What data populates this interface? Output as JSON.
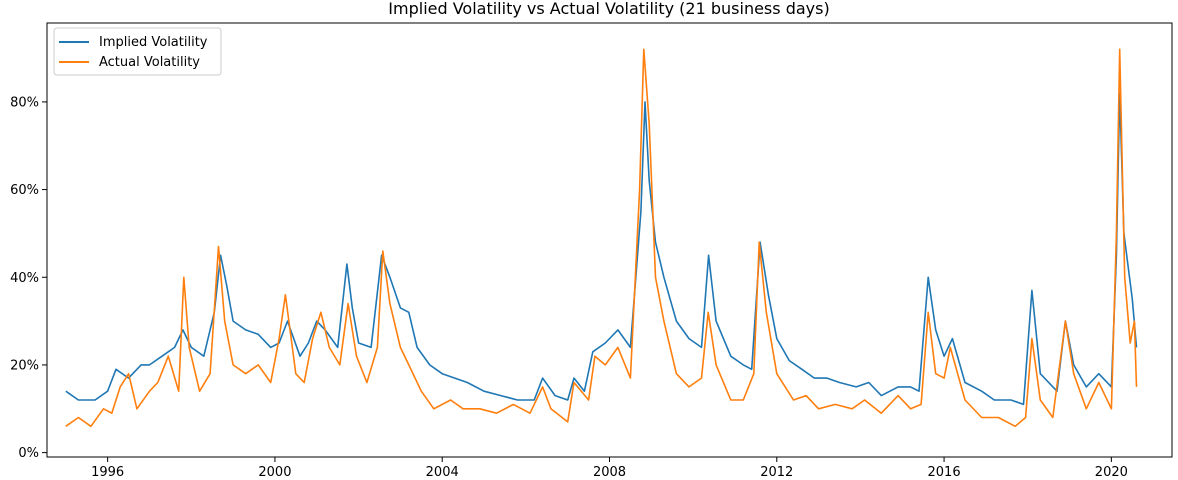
{
  "chart_data": {
    "type": "line",
    "title": "Implied Volatility vs Actual Volatility (21 business days)",
    "xlabel": "",
    "ylabel": "",
    "x_ticks": [
      "1996",
      "2000",
      "2004",
      "2008",
      "2012",
      "2016",
      "2020"
    ],
    "y_ticks": [
      "0%",
      "20%",
      "40%",
      "60%",
      "80%"
    ],
    "xlim": [
      1994.55,
      2021.45
    ],
    "ylim": [
      -1,
      98
    ],
    "grid": false,
    "legend": "top-left",
    "series": [
      {
        "name": "Implied Volatility",
        "color": "#1f77b4",
        "points": [
          [
            1995.0,
            14
          ],
          [
            1995.3,
            12
          ],
          [
            1995.7,
            12
          ],
          [
            1996.0,
            14
          ],
          [
            1996.2,
            19
          ],
          [
            1996.5,
            17
          ],
          [
            1996.8,
            20
          ],
          [
            1997.0,
            20
          ],
          [
            1997.3,
            22
          ],
          [
            1997.6,
            24
          ],
          [
            1997.8,
            28
          ],
          [
            1998.0,
            24
          ],
          [
            1998.3,
            22
          ],
          [
            1998.55,
            32
          ],
          [
            1998.7,
            45
          ],
          [
            1998.85,
            38
          ],
          [
            1999.0,
            30
          ],
          [
            1999.3,
            28
          ],
          [
            1999.6,
            27
          ],
          [
            1999.9,
            24
          ],
          [
            2000.1,
            25
          ],
          [
            2000.3,
            30
          ],
          [
            2000.6,
            22
          ],
          [
            2000.8,
            25
          ],
          [
            2001.0,
            30
          ],
          [
            2001.2,
            28
          ],
          [
            2001.5,
            24
          ],
          [
            2001.72,
            43
          ],
          [
            2001.85,
            33
          ],
          [
            2002.0,
            25
          ],
          [
            2002.3,
            24
          ],
          [
            2002.55,
            45
          ],
          [
            2002.75,
            40
          ],
          [
            2003.0,
            33
          ],
          [
            2003.2,
            32
          ],
          [
            2003.4,
            24
          ],
          [
            2003.7,
            20
          ],
          [
            2004.0,
            18
          ],
          [
            2004.3,
            17
          ],
          [
            2004.6,
            16
          ],
          [
            2005.0,
            14
          ],
          [
            2005.4,
            13
          ],
          [
            2005.8,
            12
          ],
          [
            2006.2,
            12
          ],
          [
            2006.4,
            17
          ],
          [
            2006.7,
            13
          ],
          [
            2007.0,
            12
          ],
          [
            2007.15,
            17
          ],
          [
            2007.4,
            14
          ],
          [
            2007.6,
            23
          ],
          [
            2007.9,
            25
          ],
          [
            2008.2,
            28
          ],
          [
            2008.5,
            24
          ],
          [
            2008.75,
            55
          ],
          [
            2008.85,
            80
          ],
          [
            2008.95,
            62
          ],
          [
            2009.1,
            48
          ],
          [
            2009.3,
            40
          ],
          [
            2009.6,
            30
          ],
          [
            2009.9,
            26
          ],
          [
            2010.2,
            24
          ],
          [
            2010.37,
            45
          ],
          [
            2010.55,
            30
          ],
          [
            2010.9,
            22
          ],
          [
            2011.2,
            20
          ],
          [
            2011.4,
            19
          ],
          [
            2011.6,
            48
          ],
          [
            2011.8,
            36
          ],
          [
            2012.0,
            26
          ],
          [
            2012.3,
            21
          ],
          [
            2012.6,
            19
          ],
          [
            2012.9,
            17
          ],
          [
            2013.2,
            17
          ],
          [
            2013.5,
            16
          ],
          [
            2013.9,
            15
          ],
          [
            2014.2,
            16
          ],
          [
            2014.5,
            13
          ],
          [
            2014.9,
            15
          ],
          [
            2015.2,
            15
          ],
          [
            2015.4,
            14
          ],
          [
            2015.62,
            40
          ],
          [
            2015.8,
            28
          ],
          [
            2016.0,
            22
          ],
          [
            2016.2,
            26
          ],
          [
            2016.5,
            16
          ],
          [
            2016.9,
            14
          ],
          [
            2017.2,
            12
          ],
          [
            2017.6,
            12
          ],
          [
            2017.9,
            11
          ],
          [
            2018.1,
            37
          ],
          [
            2018.3,
            18
          ],
          [
            2018.7,
            14
          ],
          [
            2018.9,
            30
          ],
          [
            2019.1,
            20
          ],
          [
            2019.4,
            15
          ],
          [
            2019.7,
            18
          ],
          [
            2020.0,
            15
          ],
          [
            2020.12,
            45
          ],
          [
            2020.2,
            82
          ],
          [
            2020.3,
            50
          ],
          [
            2020.5,
            35
          ],
          [
            2020.6,
            24
          ]
        ]
      },
      {
        "name": "Actual Volatility",
        "color": "#ff7f0e",
        "points": [
          [
            1995.0,
            6
          ],
          [
            1995.3,
            8
          ],
          [
            1995.6,
            6
          ],
          [
            1995.9,
            10
          ],
          [
            1996.1,
            9
          ],
          [
            1996.3,
            15
          ],
          [
            1996.5,
            18
          ],
          [
            1996.7,
            10
          ],
          [
            1997.0,
            14
          ],
          [
            1997.2,
            16
          ],
          [
            1997.45,
            22
          ],
          [
            1997.7,
            14
          ],
          [
            1997.82,
            40
          ],
          [
            1997.95,
            24
          ],
          [
            1998.2,
            14
          ],
          [
            1998.45,
            18
          ],
          [
            1998.65,
            47
          ],
          [
            1998.8,
            30
          ],
          [
            1999.0,
            20
          ],
          [
            1999.3,
            18
          ],
          [
            1999.6,
            20
          ],
          [
            1999.9,
            16
          ],
          [
            2000.1,
            26
          ],
          [
            2000.25,
            36
          ],
          [
            2000.5,
            18
          ],
          [
            2000.7,
            16
          ],
          [
            2000.9,
            26
          ],
          [
            2001.1,
            32
          ],
          [
            2001.3,
            24
          ],
          [
            2001.55,
            20
          ],
          [
            2001.75,
            34
          ],
          [
            2001.95,
            22
          ],
          [
            2002.2,
            16
          ],
          [
            2002.45,
            24
          ],
          [
            2002.58,
            46
          ],
          [
            2002.75,
            34
          ],
          [
            2003.0,
            24
          ],
          [
            2003.2,
            20
          ],
          [
            2003.5,
            14
          ],
          [
            2003.8,
            10
          ],
          [
            2004.2,
            12
          ],
          [
            2004.5,
            10
          ],
          [
            2004.9,
            10
          ],
          [
            2005.3,
            9
          ],
          [
            2005.7,
            11
          ],
          [
            2006.1,
            9
          ],
          [
            2006.4,
            15
          ],
          [
            2006.6,
            10
          ],
          [
            2007.0,
            7
          ],
          [
            2007.15,
            16
          ],
          [
            2007.5,
            12
          ],
          [
            2007.65,
            22
          ],
          [
            2007.9,
            20
          ],
          [
            2008.2,
            24
          ],
          [
            2008.5,
            17
          ],
          [
            2008.72,
            60
          ],
          [
            2008.82,
            92
          ],
          [
            2008.95,
            75
          ],
          [
            2009.1,
            40
          ],
          [
            2009.3,
            30
          ],
          [
            2009.6,
            18
          ],
          [
            2009.9,
            15
          ],
          [
            2010.2,
            17
          ],
          [
            2010.36,
            32
          ],
          [
            2010.55,
            20
          ],
          [
            2010.9,
            12
          ],
          [
            2011.2,
            12
          ],
          [
            2011.45,
            18
          ],
          [
            2011.58,
            48
          ],
          [
            2011.75,
            32
          ],
          [
            2012.0,
            18
          ],
          [
            2012.4,
            12
          ],
          [
            2012.7,
            13
          ],
          [
            2013.0,
            10
          ],
          [
            2013.4,
            11
          ],
          [
            2013.8,
            10
          ],
          [
            2014.1,
            12
          ],
          [
            2014.5,
            9
          ],
          [
            2014.9,
            13
          ],
          [
            2015.2,
            10
          ],
          [
            2015.45,
            11
          ],
          [
            2015.62,
            32
          ],
          [
            2015.8,
            18
          ],
          [
            2016.0,
            17
          ],
          [
            2016.15,
            24
          ],
          [
            2016.5,
            12
          ],
          [
            2016.9,
            8
          ],
          [
            2017.3,
            8
          ],
          [
            2017.7,
            6
          ],
          [
            2017.95,
            8
          ],
          [
            2018.1,
            26
          ],
          [
            2018.3,
            12
          ],
          [
            2018.6,
            8
          ],
          [
            2018.9,
            30
          ],
          [
            2019.1,
            18
          ],
          [
            2019.4,
            10
          ],
          [
            2019.7,
            16
          ],
          [
            2020.0,
            10
          ],
          [
            2020.12,
            50
          ],
          [
            2020.2,
            92
          ],
          [
            2020.32,
            40
          ],
          [
            2020.45,
            25
          ],
          [
            2020.55,
            30
          ],
          [
            2020.6,
            15
          ]
        ]
      }
    ]
  }
}
